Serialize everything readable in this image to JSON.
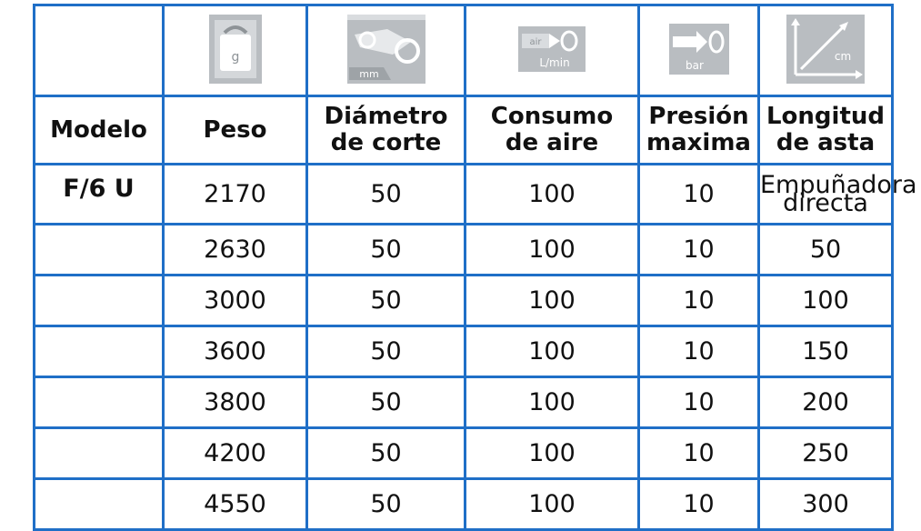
{
  "table": {
    "icons": [
      {
        "name": "weight-icon",
        "caption": "g"
      },
      {
        "name": "cutting-diameter-icon",
        "caption": "mm"
      },
      {
        "name": "air-consumption-icon",
        "caption": "L/min",
        "inner": "air"
      },
      {
        "name": "pressure-icon",
        "caption": "bar"
      },
      {
        "name": "rod-length-icon",
        "caption": "cm"
      }
    ],
    "headers": {
      "modelo": "Modelo",
      "peso": "Peso",
      "diametro_l1": "Diámetro",
      "diametro_l2": "de corte",
      "consumo_l1": "Consumo",
      "consumo_l2": "de aire",
      "presion_l1": "Presión",
      "presion_l2": "maxima",
      "longitud_l1": "Longitud",
      "longitud_l2": "de asta"
    },
    "model": "F/6 U",
    "rows": [
      {
        "peso": "2170",
        "diametro": "50",
        "consumo": "100",
        "presion": "10",
        "longitud_l1": "Empuñadora",
        "longitud_l2": "directa"
      },
      {
        "peso": "2630",
        "diametro": "50",
        "consumo": "100",
        "presion": "10",
        "longitud": "50"
      },
      {
        "peso": "3000",
        "diametro": "50",
        "consumo": "100",
        "presion": "10",
        "longitud": "100"
      },
      {
        "peso": "3600",
        "diametro": "50",
        "consumo": "100",
        "presion": "10",
        "longitud": "150"
      },
      {
        "peso": "3800",
        "diametro": "50",
        "consumo": "100",
        "presion": "10",
        "longitud": "200"
      },
      {
        "peso": "4200",
        "diametro": "50",
        "consumo": "100",
        "presion": "10",
        "longitud": "250"
      },
      {
        "peso": "4550",
        "diametro": "50",
        "consumo": "100",
        "presion": "10",
        "longitud": "300"
      }
    ]
  }
}
